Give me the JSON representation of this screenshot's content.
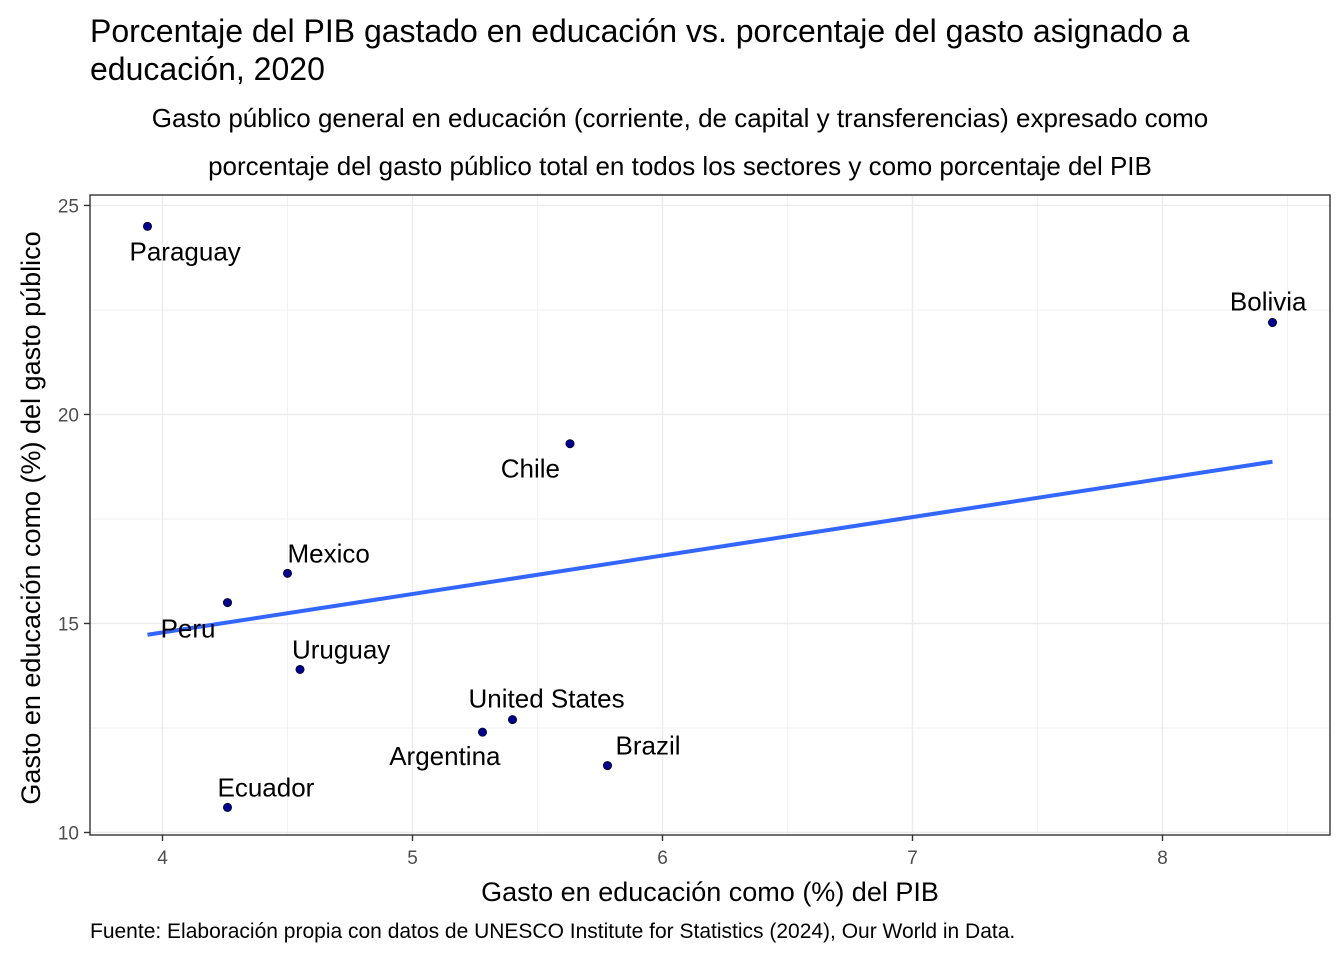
{
  "chart_data": {
    "type": "scatter",
    "title": "Porcentaje del PIB gastado en educación vs. porcentaje del gasto asignado a educación, 2020",
    "subtitle_line1": "Gasto público general en educación (corriente, de capital y transferencias) expresado como",
    "subtitle_line2": "porcentaje del gasto público total en todos los sectores y como porcentaje del PIB",
    "xlabel": "Gasto en educación como (%) del PIB",
    "ylabel": "Gasto en educación como (%) del gasto público",
    "caption": "Fuente: Elaboración propia con datos de UNESCO Institute for Statistics (2024), Our World in Data.",
    "xlim": [
      3.71,
      8.67
    ],
    "ylim": [
      9.94,
      25.25
    ],
    "x_ticks": [
      4,
      5,
      6,
      7,
      8
    ],
    "y_ticks": [
      10,
      15,
      20,
      25
    ],
    "grid": true,
    "point_color": "#00008B",
    "trend_color": "#3366FF",
    "points": [
      {
        "label": "Paraguay",
        "x": 3.94,
        "y": 24.5,
        "label_pos": "below"
      },
      {
        "label": "Bolivia",
        "x": 8.44,
        "y": 22.2,
        "label_pos": "above"
      },
      {
        "label": "Chile",
        "x": 5.63,
        "y": 19.3,
        "label_pos": "below-left"
      },
      {
        "label": "Mexico",
        "x": 4.5,
        "y": 16.2,
        "label_pos": "above"
      },
      {
        "label": "Peru",
        "x": 4.26,
        "y": 15.5,
        "label_pos": "below-left"
      },
      {
        "label": "Uruguay",
        "x": 4.55,
        "y": 13.9,
        "label_pos": "above"
      },
      {
        "label": "United States",
        "x": 5.4,
        "y": 12.7,
        "label_pos": "above"
      },
      {
        "label": "Argentina",
        "x": 5.28,
        "y": 12.4,
        "label_pos": "below-left"
      },
      {
        "label": "Brazil",
        "x": 5.78,
        "y": 11.6,
        "label_pos": "above"
      },
      {
        "label": "Ecuador",
        "x": 4.26,
        "y": 10.6,
        "label_pos": "above"
      }
    ],
    "trend_line": {
      "x": [
        3.94,
        8.44
      ],
      "y": [
        14.73,
        18.87
      ]
    }
  }
}
